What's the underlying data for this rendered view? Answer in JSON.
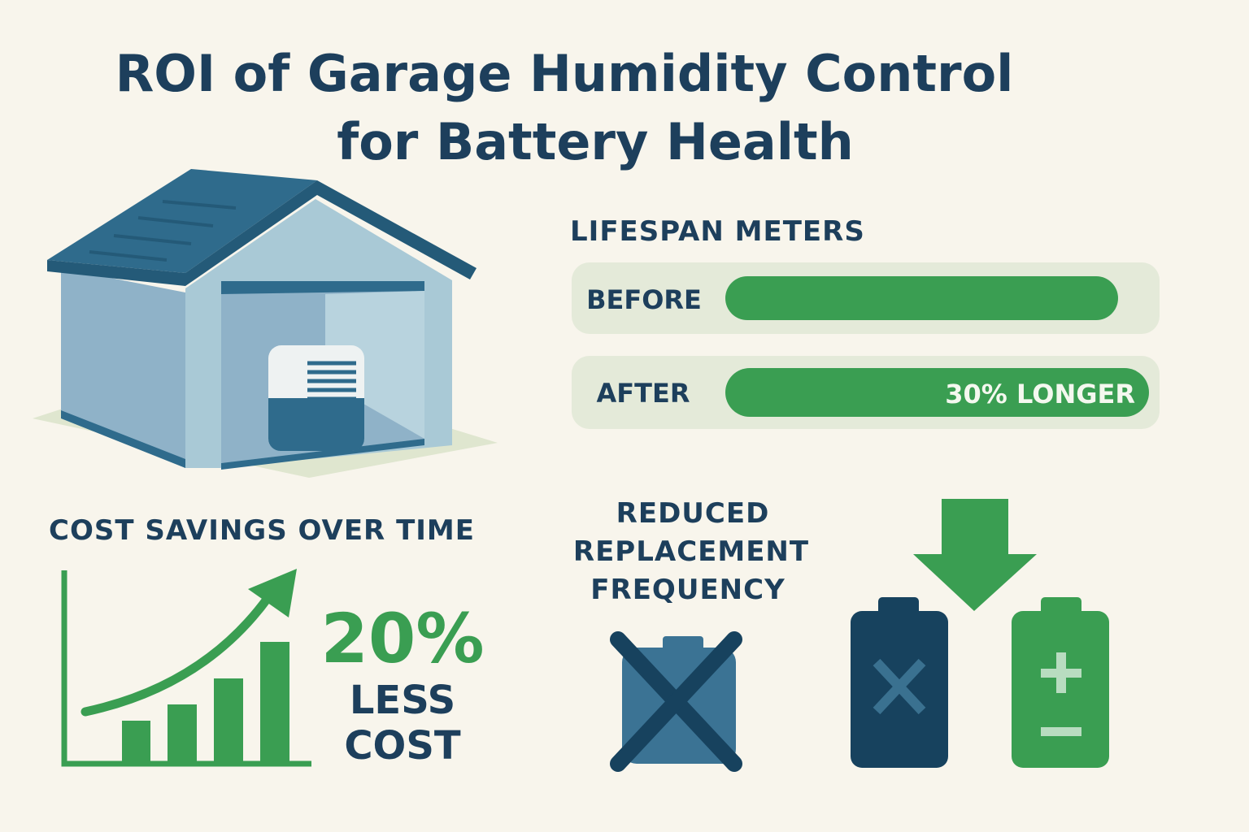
{
  "header": {
    "title_lines": [
      "ROI of Garage Humidity Control",
      "for Battery Health"
    ]
  },
  "lifespan": {
    "heading": "LIFESPAN METERS",
    "rows": [
      {
        "label": "BEFORE"
      },
      {
        "label": "AFTER",
        "note": "30% LONGER"
      }
    ]
  },
  "cost": {
    "heading": "COST SAVINGS OVER TIME",
    "figure": "20%",
    "caption_lines": [
      "LESS",
      "COST"
    ]
  },
  "replacement": {
    "heading_lines": [
      "REDUCED",
      "REPLACEMENT",
      "FREQUENCY"
    ]
  }
}
